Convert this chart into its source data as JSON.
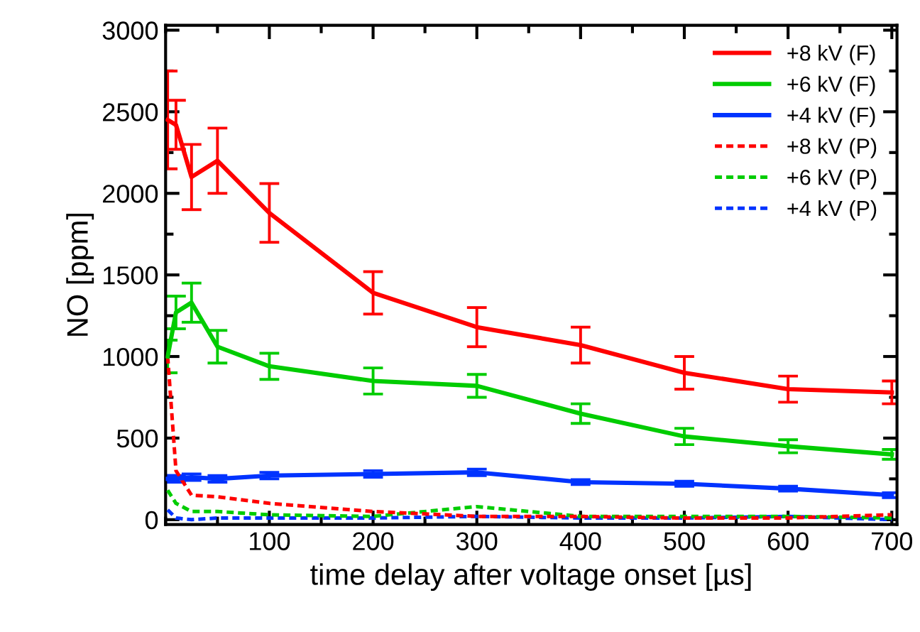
{
  "chart_data": {
    "type": "line",
    "xlabel": "time delay after voltage onset [µs]",
    "ylabel": "NO [ppm]",
    "x": [
      2,
      10,
      25,
      50,
      100,
      200,
      300,
      400,
      500,
      600,
      700
    ],
    "xlim": [
      0,
      705
    ],
    "xticks": [
      100,
      200,
      300,
      400,
      500,
      600,
      700
    ],
    "ylim": [
      -30,
      3030
    ],
    "yticks": [
      0,
      500,
      1000,
      1500,
      2000,
      2500,
      3000
    ],
    "grid": false,
    "legend": "top right",
    "marker": "none",
    "series": [
      {
        "name": "+8 kV (F)",
        "color": "#ff0000",
        "line_style": "solid",
        "values": [
          2450,
          2420,
          2100,
          2200,
          1880,
          1390,
          1180,
          1070,
          900,
          800,
          780
        ],
        "errors": [
          300,
          150,
          200,
          200,
          180,
          130,
          120,
          110,
          100,
          80,
          70
        ]
      },
      {
        "name": "+6 kV (F)",
        "color": "#00cc00",
        "line_style": "solid",
        "values": [
          1000,
          1270,
          1330,
          1060,
          940,
          850,
          820,
          650,
          510,
          450,
          400
        ],
        "errors": [
          100,
          100,
          120,
          100,
          80,
          80,
          70,
          60,
          50,
          40,
          30
        ]
      },
      {
        "name": "+4 kV (F)",
        "color": "#0033ff",
        "line_style": "solid",
        "values": [
          250,
          250,
          260,
          250,
          270,
          280,
          290,
          230,
          220,
          190,
          150
        ],
        "errors": [
          20,
          20,
          20,
          20,
          20,
          20,
          20,
          15,
          15,
          15,
          15
        ]
      },
      {
        "name": "+8 kV (P)",
        "color": "#ff0000",
        "line_style": "dashed",
        "values": [
          1000,
          300,
          150,
          140,
          100,
          50,
          20,
          20,
          10,
          10,
          30
        ]
      },
      {
        "name": "+6 kV (P)",
        "color": "#00cc00",
        "line_style": "dashed",
        "values": [
          180,
          100,
          50,
          50,
          30,
          20,
          80,
          20,
          20,
          20,
          10
        ]
      },
      {
        "name": "+4 kV (P)",
        "color": "#0033ff",
        "line_style": "dashed",
        "values": [
          60,
          10,
          0,
          10,
          10,
          10,
          20,
          10,
          10,
          20,
          0
        ]
      }
    ]
  }
}
